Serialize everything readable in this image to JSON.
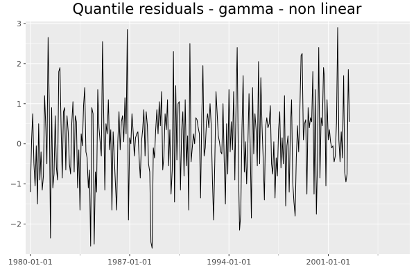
{
  "chart_data": {
    "type": "line",
    "title": "Quantile residuals - gamma - non linear",
    "xlabel": "",
    "ylabel": "",
    "x_start": "1980-01-01",
    "x_step": "month",
    "x_ticks": [
      "1980-01-01",
      "1987-01-01",
      "1994-01-01",
      "2001-01-01"
    ],
    "y_ticks": [
      -2,
      -1,
      0,
      1,
      2,
      3
    ],
    "xlim": [
      "1979-09-01",
      "2006-10-01"
    ],
    "ylim": [
      -2.75,
      3.05
    ],
    "grid": true,
    "legend": "none",
    "background_color": "#ebebeb",
    "grid_color": "#ffffff",
    "line_color": "#000000",
    "series": [
      {
        "values": [
          -1.2,
          0.1,
          0.75,
          -0.5,
          -1.05,
          -0.05,
          -1.5,
          0.5,
          -0.9,
          -0.2,
          -1.15,
          -0.8,
          1.2,
          0.4,
          -0.5,
          2.65,
          1.0,
          -2.35,
          0.9,
          -1.1,
          -0.75,
          0.7,
          -0.6,
          -0.9,
          1.8,
          1.9,
          0.45,
          -0.85,
          0.8,
          0.9,
          -0.65,
          0.7,
          0.3,
          -0.5,
          -0.75,
          0.5,
          1.05,
          -0.7,
          0.7,
          0.55,
          -1.1,
          -0.15,
          -1.65,
          0.25,
          -0.05,
          0.95,
          1.4,
          -0.2,
          -0.35,
          -1.1,
          -0.65,
          -2.55,
          0.9,
          0.75,
          -2.5,
          -0.7,
          -1.2,
          1.35,
          0.4,
          0.05,
          -0.3,
          2.55,
          0.85,
          -1.15,
          0.5,
          0.25,
          1.1,
          -0.15,
          0.35,
          -1.65,
          0.3,
          -0.35,
          -1.05,
          -1.65,
          0.05,
          0.8,
          -0.15,
          0.55,
          0.7,
          0.05,
          1.15,
          0.25,
          2.85,
          -1.9,
          0.15,
          0.0,
          0.75,
          0.3,
          -0.3,
          0.15,
          0.25,
          0.3,
          -0.35,
          -0.85,
          0.05,
          0.35,
          0.85,
          -0.3,
          0.8,
          0.45,
          -0.5,
          -0.7,
          -2.45,
          -2.6,
          -0.1,
          -0.35,
          0.35,
          0.85,
          0.25,
          1.05,
          0.45,
          1.3,
          -0.65,
          -0.3,
          0.75,
          0.35,
          1.1,
          -0.55,
          0.35,
          -1.25,
          -0.65,
          2.3,
          -1.45,
          1.45,
          -0.4,
          1.0,
          1.05,
          -1.15,
          0.35,
          0.8,
          -0.8,
          1.1,
          -0.55,
          0.2,
          -1.65,
          2.5,
          -0.45,
          -0.1,
          0.25,
          0.0,
          0.65,
          0.6,
          0.4,
          0.25,
          -1.35,
          0.7,
          1.95,
          -0.3,
          -0.1,
          0.55,
          0.75,
          0.4,
          1.0,
          0.45,
          -0.9,
          -1.9,
          -0.45,
          1.3,
          0.8,
          0.2,
          0.05,
          -0.2,
          -0.25,
          1.0,
          -0.45,
          -1.5,
          0.5,
          -0.75,
          1.35,
          -0.2,
          0.55,
          -0.15,
          1.3,
          -0.9,
          0.9,
          2.4,
          -0.55,
          -2.15,
          -1.75,
          0.35,
          1.7,
          -0.7,
          0.05,
          -1.0,
          -0.1,
          1.25,
          0.0,
          -1.85,
          1.4,
          -0.25,
          0.75,
          0.35,
          -0.55,
          2.05,
          -0.5,
          1.65,
          0.45,
          -0.4,
          -1.4,
          0.4,
          0.65,
          0.4,
          0.5,
          0.95,
          -0.5,
          -0.75,
          0.05,
          -1.35,
          -0.35,
          -0.8,
          0.35,
          0.8,
          -0.6,
          0.15,
          -0.5,
          1.2,
          -1.55,
          -0.05,
          0.2,
          -1.2,
          0.35,
          1.1,
          -0.95,
          -1.45,
          -1.8,
          -0.35,
          0.45,
          -0.2,
          0.85,
          2.2,
          2.25,
          0.1,
          0.5,
          0.6,
          -1.25,
          0.9,
          0.4,
          0.65,
          0.55,
          1.8,
          -1.25,
          1.35,
          -1.75,
          -0.35,
          2.4,
          -0.85,
          0.65,
          0.45,
          1.9,
          1.6,
          -1.05,
          1.1,
          0.1,
          0.35,
          0.05,
          -0.1,
          -0.05,
          -0.45,
          -0.3,
          0.55,
          2.9,
          0.1,
          -0.45,
          0.3,
          -0.35,
          1.7,
          -0.7,
          -0.95,
          -0.75,
          1.85,
          0.55
        ]
      }
    ]
  }
}
